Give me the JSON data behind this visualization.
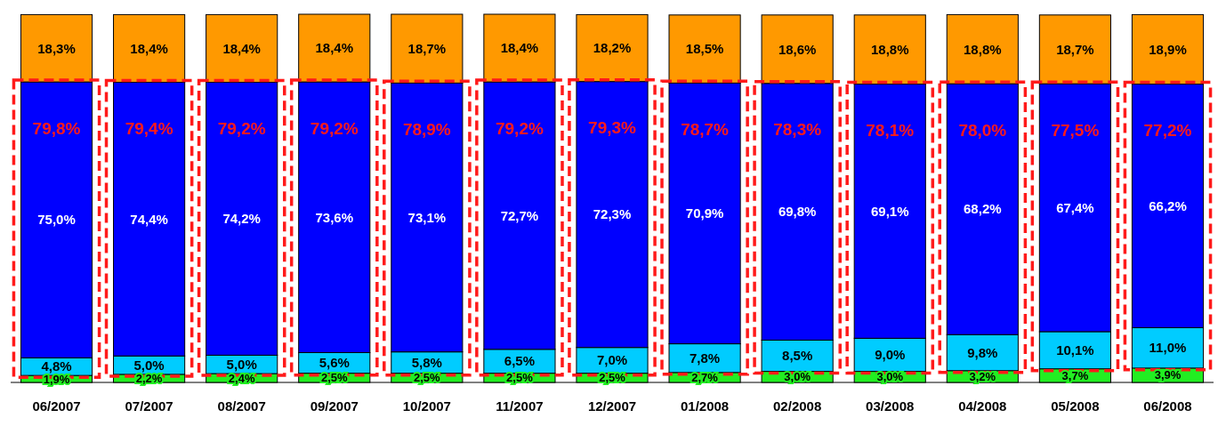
{
  "chart_data": {
    "type": "bar",
    "stacked": true,
    "categories": [
      "06/2007",
      "07/2007",
      "08/2007",
      "09/2007",
      "10/2007",
      "11/2007",
      "12/2007",
      "01/2008",
      "02/2008",
      "03/2008",
      "04/2008",
      "05/2008",
      "06/2008"
    ],
    "series": [
      {
        "color": "#22ee22",
        "values": [
          1.9,
          2.2,
          2.4,
          2.5,
          2.5,
          2.5,
          2.5,
          2.7,
          3.0,
          3.0,
          3.2,
          3.7,
          3.9
        ],
        "value_labels": [
          "1,9%",
          "2,2%",
          "2,4%",
          "2,5%",
          "2,5%",
          "2,5%",
          "2,5%",
          "2,7%",
          "3,0%",
          "3,0%",
          "3,2%",
          "3,7%",
          "3,9%"
        ]
      },
      {
        "color": "#00ccff",
        "values": [
          4.8,
          5.0,
          5.0,
          5.6,
          5.8,
          6.5,
          7.0,
          7.8,
          8.5,
          9.0,
          9.8,
          10.1,
          11.0
        ],
        "value_labels": [
          "4,8%",
          "5,0%",
          "5,0%",
          "5,6%",
          "5,8%",
          "6,5%",
          "7,0%",
          "7,8%",
          "8,5%",
          "9,0%",
          "9,8%",
          "10,1%",
          "11,0%"
        ]
      },
      {
        "color": "#0000ff",
        "values": [
          75.0,
          74.4,
          74.2,
          73.6,
          73.1,
          72.7,
          72.3,
          70.9,
          69.8,
          69.1,
          68.2,
          67.4,
          66.2
        ],
        "value_labels": [
          "75,0%",
          "74,4%",
          "74,2%",
          "73,6%",
          "73,1%",
          "72,7%",
          "72,3%",
          "70,9%",
          "69,8%",
          "69,1%",
          "68,2%",
          "67,4%",
          "66,2%"
        ]
      },
      {
        "color": "#ff9900",
        "values": [
          18.3,
          18.4,
          18.4,
          18.4,
          18.7,
          18.4,
          18.2,
          18.5,
          18.6,
          18.8,
          18.8,
          18.7,
          18.9
        ],
        "value_labels": [
          "18,3%",
          "18,4%",
          "18,4%",
          "18,4%",
          "18,7%",
          "18,4%",
          "18,2%",
          "18,5%",
          "18,6%",
          "18,8%",
          "18,8%",
          "18,7%",
          "18,9%"
        ]
      }
    ],
    "annotations": [
      "79,8%",
      "79,4%",
      "79,2%",
      "79,2%",
      "78,9%",
      "79,2%",
      "79,3%",
      "78,7%",
      "78,3%",
      "78,1%",
      "78,0%",
      "77,5%",
      "77,2%"
    ]
  }
}
